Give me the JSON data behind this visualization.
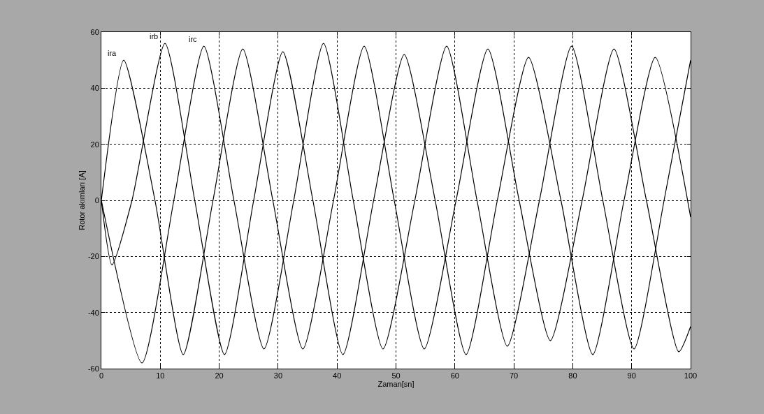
{
  "chart_data": {
    "type": "line",
    "xlabel": "Zaman[sn]",
    "ylabel": "Rotor akımları [A]",
    "xlim": [
      0,
      100
    ],
    "ylim": [
      -60,
      60
    ],
    "xticks": [
      0,
      10,
      20,
      30,
      40,
      50,
      60,
      70,
      80,
      90,
      100
    ],
    "yticks": [
      -60,
      -40,
      -20,
      0,
      20,
      40,
      60
    ],
    "grid": true,
    "line_style": "solid",
    "marker": "none",
    "series": [
      {
        "name": "ira",
        "color": "#000000",
        "x": [
          0,
          3.8,
          9.1,
          13.9,
          18.95,
          24,
          29.1,
          34.2,
          39.4,
          44.6,
          49.7,
          54.8,
          60.2,
          65.6,
          70.9,
          76.2,
          81.6,
          87,
          92.5,
          98,
          100
        ],
        "values": [
          0,
          50,
          0,
          -55,
          0,
          54,
          0,
          -53,
          0,
          55,
          0,
          -53,
          0,
          54,
          0,
          -50,
          0,
          54,
          0,
          -54,
          -45
        ]
      },
      {
        "name": "irb",
        "color": "#000000",
        "x": [
          0,
          1.8,
          5.2,
          10.8,
          15.85,
          20.9,
          25.85,
          30.8,
          35.9,
          41,
          46.2,
          51.4,
          56.65,
          61.9,
          67.2,
          72.5,
          78,
          83.4,
          88.7,
          94,
          100
        ],
        "values": [
          0,
          -23,
          0,
          56,
          0,
          -55,
          0,
          53,
          0,
          -55,
          0,
          52,
          0,
          -55,
          0,
          51,
          0,
          -55,
          0,
          51,
          -6
        ]
      },
      {
        "name": "irc",
        "color": "#000000",
        "x": [
          0,
          6.9,
          12.3,
          17.4,
          22.5,
          27.6,
          32.65,
          37.7,
          42.75,
          47.8,
          53.2,
          58.6,
          63.75,
          68.9,
          74.35,
          79.8,
          85.1,
          90.4,
          95.5,
          100
        ],
        "values": [
          0,
          -58,
          0,
          55,
          0,
          -53,
          0,
          56,
          0,
          -53,
          0,
          55,
          0,
          -52,
          0,
          55,
          0,
          -53,
          0,
          50
        ]
      }
    ]
  }
}
